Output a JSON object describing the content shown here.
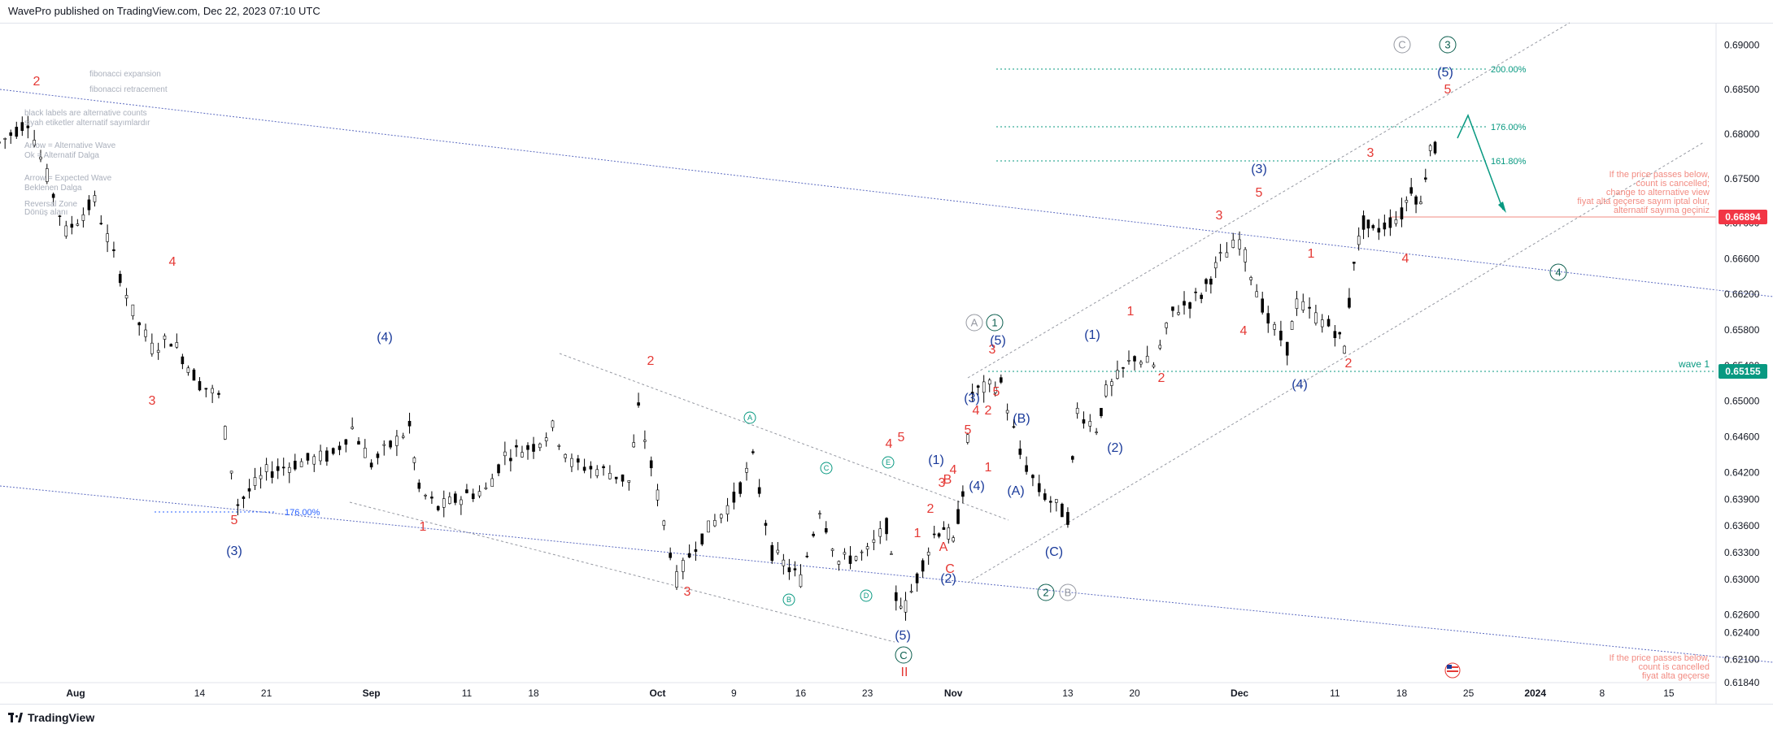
{
  "header": {
    "publisher": "WavePro published on TradingView.com, Dec 22, 2023 07:10 UTC"
  },
  "footer": {
    "brand": "TradingView"
  },
  "chart_data": {
    "type": "candlestick",
    "title": "",
    "ylim": [
      0.6184,
      0.6925
    ],
    "y_ticks": [
      "0.69000",
      "0.68500",
      "0.68000",
      "0.67500",
      "0.67000",
      "0.66600",
      "0.66200",
      "0.65800",
      "0.65400",
      "0.65000",
      "0.64600",
      "0.64200",
      "0.63900",
      "0.63600",
      "0.63300",
      "0.63000",
      "0.62600",
      "0.62400",
      "0.62100",
      "0.61840"
    ],
    "x_ticks": [
      "Aug",
      "14",
      "21",
      "Sep",
      "11",
      "18",
      "Oct",
      "9",
      "16",
      "23",
      "Nov",
      "13",
      "20",
      "Dec",
      "11",
      "18",
      "25",
      "2024",
      "8",
      "15"
    ],
    "price_badges": [
      {
        "value": "0.66894",
        "color": "#f23645"
      },
      {
        "value": "0.65155",
        "color": "#089981",
        "label": "wave 1"
      }
    ],
    "fib_levels": [
      {
        "label": "200.00%",
        "price": 0.6862
      },
      {
        "label": "176.00%",
        "price": 0.6796
      },
      {
        "label": "161.80%",
        "price": 0.6758
      },
      {
        "label": "176.00%",
        "price": 0.6377
      }
    ],
    "series_close_points": [
      [
        "Jul 24",
        0.679
      ],
      [
        "Jul 27",
        0.6815
      ],
      [
        "Jul 31",
        0.669
      ],
      [
        "Aug 3",
        0.6725
      ],
      [
        "Aug 7",
        0.66
      ],
      [
        "Aug 9",
        0.656
      ],
      [
        "Aug 11",
        0.657
      ],
      [
        "Aug 14",
        0.652
      ],
      [
        "Aug 16",
        0.6505
      ],
      [
        "Aug 18",
        0.6385
      ],
      [
        "Aug 21",
        0.642
      ],
      [
        "Aug 24",
        0.643
      ],
      [
        "Aug 28",
        0.644
      ],
      [
        "Aug 30",
        0.647
      ],
      [
        "Sep 1",
        0.643
      ],
      [
        "Sep 5",
        0.647
      ],
      [
        "Sep 6",
        0.64
      ],
      [
        "Sep 8",
        0.638
      ],
      [
        "Sep 11",
        0.6395
      ],
      [
        "Sep 13",
        0.64
      ],
      [
        "Sep 15",
        0.644
      ],
      [
        "Sep 18",
        0.645
      ],
      [
        "Sep 20",
        0.647
      ],
      [
        "Sep 22",
        0.643
      ],
      [
        "Sep 26",
        0.642
      ],
      [
        "Sep 28",
        0.641
      ],
      [
        "Sep 29",
        0.649
      ],
      [
        "Oct 3",
        0.63
      ],
      [
        "Oct 5",
        0.634
      ],
      [
        "Oct 9",
        0.639
      ],
      [
        "Oct 11",
        0.6435
      ],
      [
        "Oct 13",
        0.633
      ],
      [
        "Oct 16",
        0.63
      ],
      [
        "Oct 18",
        0.638
      ],
      [
        "Oct 20",
        0.632
      ],
      [
        "Oct 23",
        0.633
      ],
      [
        "Oct 25",
        0.636
      ],
      [
        "Oct 26",
        0.628
      ],
      [
        "Oct 27",
        0.627
      ],
      [
        "Oct 30",
        0.635
      ],
      [
        "Oct 31",
        0.636
      ],
      [
        "Nov 1",
        0.634
      ],
      [
        "Nov 2",
        0.64
      ],
      [
        "Nov 3",
        0.651
      ],
      [
        "Nov 6",
        0.652
      ],
      [
        "Nov 8",
        0.644
      ],
      [
        "Nov 10",
        0.64
      ],
      [
        "Nov 13",
        0.637
      ],
      [
        "Nov 14",
        0.649
      ],
      [
        "Nov 16",
        0.647
      ],
      [
        "Nov 17",
        0.651
      ],
      [
        "Nov 20",
        0.655
      ],
      [
        "Nov 22",
        0.654
      ],
      [
        "Nov 24",
        0.66
      ],
      [
        "Nov 27",
        0.662
      ],
      [
        "Nov 28",
        0.664
      ],
      [
        "Nov 29",
        0.666
      ],
      [
        "Dec 1",
        0.668
      ],
      [
        "Dec 4",
        0.659
      ],
      [
        "Dec 6",
        0.656
      ],
      [
        "Dec 7",
        0.661
      ],
      [
        "Dec 11",
        0.658
      ],
      [
        "Dec 12",
        0.656
      ],
      [
        "Dec 13",
        0.666
      ],
      [
        "Dec 14",
        0.67
      ],
      [
        "Dec 15",
        0.669
      ],
      [
        "Dec 18",
        0.671
      ],
      [
        "Dec 19",
        0.674
      ],
      [
        "Dec 20",
        0.672
      ],
      [
        "Dec 21",
        0.679
      ],
      [
        "Dec 22",
        0.6775
      ]
    ],
    "wave_labels_red": [
      "2",
      "4",
      "3",
      "5",
      "1",
      "2",
      "3",
      "4",
      "5",
      "1",
      "2",
      "3",
      "4",
      "5",
      "1",
      "2",
      "3",
      "4",
      "5",
      "1",
      "2",
      "3",
      "4",
      "5",
      "1",
      "2",
      "3",
      "4",
      "5",
      "A",
      "B",
      "C",
      "II"
    ],
    "wave_labels_blue": [
      "(4)",
      "(3)",
      "(5)",
      "(1)",
      "(2)",
      "(3)",
      "(4)",
      "(5)",
      "(A)",
      "(B)",
      "(C)",
      "(1)",
      "(2)",
      "(3)",
      "(4)",
      "(5)"
    ],
    "circle_labels": [
      "A",
      "B",
      "C",
      "D",
      "E",
      "A",
      "B",
      "C",
      "1",
      "2",
      "3",
      "4"
    ],
    "legend_notes": [
      "fibonacci expansion",
      "fibonacci retracement",
      "black labels are alternative counts",
      "siyah etiketler alternatif sayımlardır",
      "Arrow = Alternative Wave",
      "Ok = Alternatif Dalga",
      "Arrow = Expected Wave",
      "Beklenen Dalga",
      "Reversal Zone",
      "Dönüş alanı"
    ],
    "alert_notes": [
      "If the price passes below,",
      "count is cancelled;",
      "change to alternative view",
      "fiyat alta geçerse sayım iptal olur,",
      "alternatif sayıma geçiniz"
    ],
    "alert_notes_2": [
      "If the price passes below,",
      "count is cancelled",
      "fiyat alta geçerse"
    ],
    "axis_label": "wave 1"
  }
}
